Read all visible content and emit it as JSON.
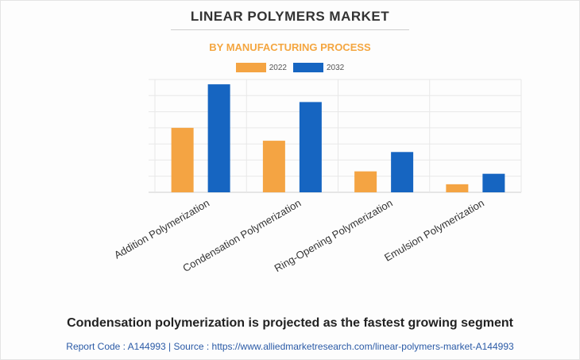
{
  "chart_data": {
    "type": "bar",
    "title": "LINEAR POLYMERS MARKET",
    "subtitle": "BY MANUFACTURING PROCESS",
    "categories": [
      "Addition Polymerization",
      "Condensation Polymerization",
      "Ring-Opening Polymerization",
      "Emulsion Polymerization"
    ],
    "series": [
      {
        "name": "2022",
        "color": "#f4a443",
        "values": [
          4.0,
          3.2,
          1.3,
          0.5
        ]
      },
      {
        "name": "2032",
        "color": "#1665c1",
        "values": [
          6.7,
          5.6,
          2.5,
          1.15
        ]
      }
    ],
    "ylim": [
      0,
      7
    ],
    "grid": true,
    "legend_position": "top-center"
  },
  "headline": "Condensation polymerization is projected as the fastest growing segment",
  "footer": "Report Code : A144993  |  Source : https://www.alliedmarketresearch.com/linear-polymers-market-A144993"
}
